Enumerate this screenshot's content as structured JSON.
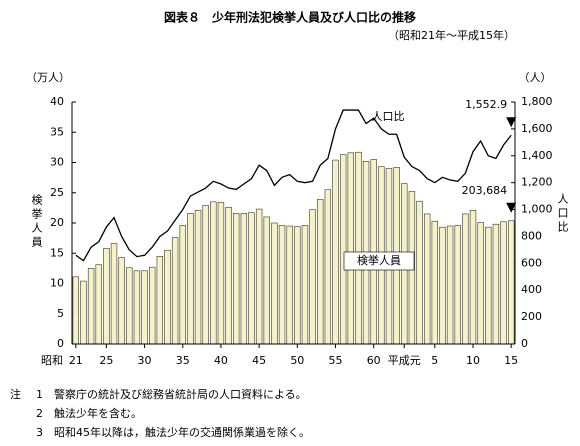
{
  "chart_data": {
    "type": "bar-line",
    "title": "図表８　少年刑法犯検挙人員及び人口比の推移",
    "subtitle": "（昭和21年～平成15年）",
    "y_unit": "（万人）",
    "y2_unit": "（人）",
    "y_label": "検挙人員",
    "y2_label": "人口比",
    "x_era": "昭和",
    "categories": [
      "21",
      null,
      null,
      null,
      "25",
      null,
      null,
      null,
      null,
      "30",
      null,
      null,
      null,
      null,
      "35",
      null,
      null,
      null,
      null,
      "40",
      null,
      null,
      null,
      null,
      "45",
      null,
      null,
      null,
      null,
      "50",
      null,
      null,
      null,
      null,
      "55",
      null,
      null,
      null,
      null,
      "60",
      null,
      null,
      null,
      "平成元",
      null,
      null,
      null,
      "5",
      null,
      null,
      null,
      null,
      "10",
      null,
      null,
      null,
      null,
      "15"
    ],
    "series": [
      {
        "name": "検挙人員",
        "color": "#f7f2c6",
        "values": [
          11.1,
          10.4,
          12.5,
          13.1,
          15.8,
          16.6,
          14.3,
          12.6,
          12.1,
          12.1,
          12.7,
          14.5,
          15.5,
          17.6,
          19.6,
          21.6,
          22.1,
          22.9,
          23.5,
          23.4,
          22.6,
          21.6,
          21.6,
          21.7,
          22.3,
          21.0,
          20.0,
          19.6,
          19.5,
          19.4,
          19.6,
          22.2,
          23.9,
          25.5,
          30.4,
          31.3,
          31.6,
          31.7,
          30.2,
          30.5,
          29.3,
          29.0,
          29.2,
          26.5,
          25.2,
          23.6,
          21.5,
          20.3,
          19.3,
          19.5,
          19.6,
          21.5,
          22.1,
          20.1,
          19.3,
          19.8,
          20.2,
          20.3684
        ],
        "value_labels": [
          null,
          null,
          null,
          null,
          null,
          null,
          null,
          null,
          null,
          null,
          null,
          null,
          null,
          null,
          null,
          null,
          null,
          null,
          null,
          null,
          null,
          null,
          null,
          null,
          null,
          null,
          null,
          null,
          null,
          null,
          null,
          null,
          null,
          null,
          null,
          null,
          null,
          null,
          null,
          null,
          null,
          null,
          null,
          null,
          null,
          null,
          null,
          null,
          null,
          null,
          null,
          null,
          null,
          null,
          null,
          null,
          null,
          "203,684"
        ]
      },
      {
        "name": "人口比",
        "color": "#000000",
        "axis": "y2",
        "values": [
          660,
          620,
          720,
          760,
          870,
          940,
          800,
          700,
          650,
          660,
          720,
          800,
          840,
          920,
          1000,
          1100,
          1130,
          1160,
          1210,
          1190,
          1160,
          1150,
          1190,
          1230,
          1330,
          1290,
          1180,
          1240,
          1260,
          1210,
          1200,
          1210,
          1330,
          1380,
          1600,
          1740,
          1740,
          1740,
          1640,
          1680,
          1600,
          1560,
          1560,
          1390,
          1320,
          1290,
          1230,
          1200,
          1240,
          1220,
          1210,
          1270,
          1430,
          1510,
          1400,
          1380,
          1480,
          1552.9
        ],
        "value_labels": [
          null,
          null,
          null,
          null,
          null,
          null,
          null,
          null,
          null,
          null,
          null,
          null,
          null,
          null,
          null,
          null,
          null,
          null,
          null,
          null,
          null,
          null,
          null,
          null,
          null,
          null,
          null,
          null,
          null,
          null,
          null,
          null,
          null,
          null,
          null,
          null,
          null,
          null,
          null,
          null,
          null,
          null,
          null,
          null,
          null,
          null,
          null,
          null,
          null,
          null,
          null,
          null,
          null,
          null,
          null,
          null,
          null,
          "1,552.9"
        ]
      }
    ],
    "ylim": [
      0,
      40
    ],
    "yticks": [
      0,
      5,
      10,
      15,
      20,
      25,
      30,
      35,
      40
    ],
    "y2lim": [
      0,
      1800
    ],
    "y2ticks": [
      0,
      200,
      400,
      600,
      800,
      {
        "value": 1000,
        "label": "1,000"
      },
      {
        "value": 1200,
        "label": "1,200"
      },
      {
        "value": 1400,
        "label": "1,400"
      },
      {
        "value": 1600,
        "label": "1,600"
      },
      {
        "value": 1800,
        "label": "1,800"
      }
    ],
    "notes_heading": "注",
    "notes": [
      "1　警察庁の統計及び総務省統計局の人口資料による。",
      "2　触法少年を含む。",
      "3　昭和45年以降は，触法少年の交通関係業過を除く。"
    ]
  }
}
